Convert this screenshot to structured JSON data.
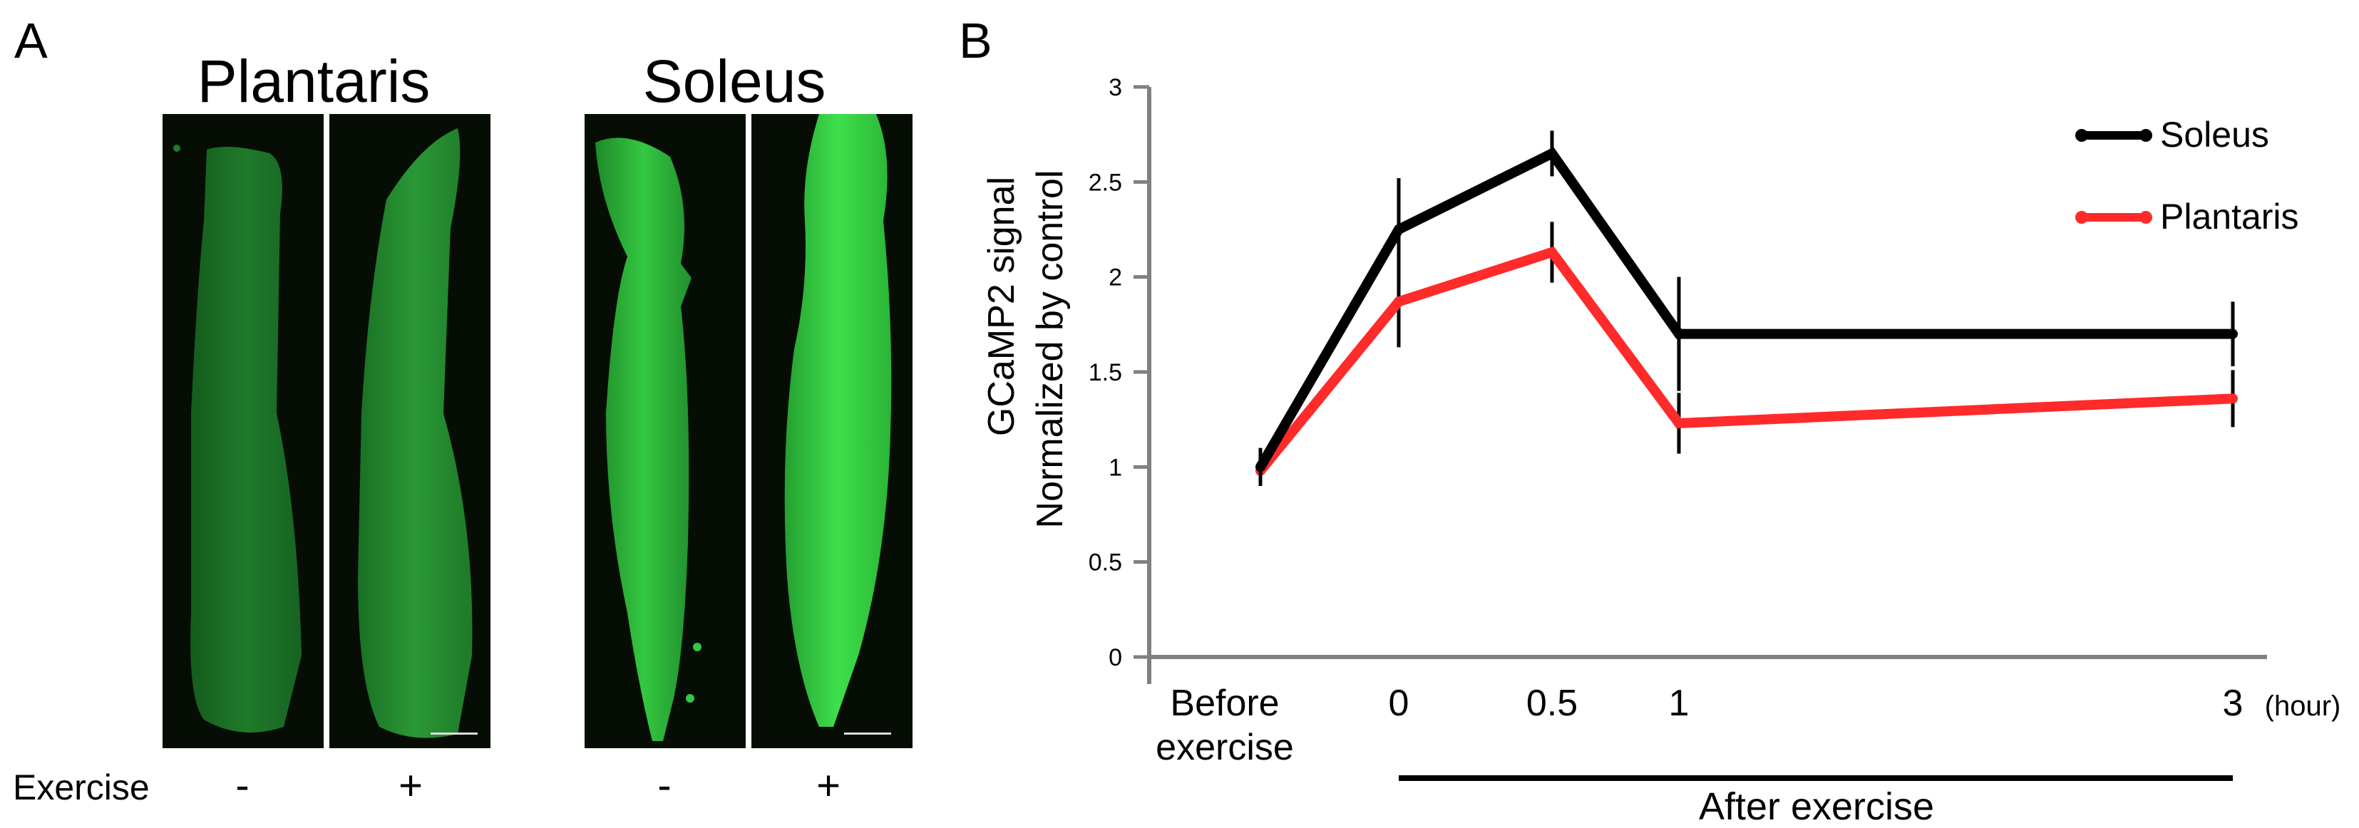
{
  "panel_a": {
    "letter": "A",
    "titles": [
      "Plantaris",
      "Soleus"
    ],
    "exercise_label": "Exercise",
    "signs": [
      "-",
      "+",
      "-",
      "+"
    ]
  },
  "panel_b": {
    "letter": "B",
    "legend": [
      "Soleus",
      "Plantaris"
    ],
    "ylabel_line1": "GCaMP2 signal",
    "ylabel_line2": "Normalized by control",
    "before_line1": "Before",
    "before_line2": "exercise",
    "hour_unit": "(hour)",
    "after_label": "After exercise"
  },
  "colors": {
    "soleus": "#000000",
    "plantaris": "#ff2a2a",
    "axis": "#808080",
    "fluorescence_dim": "#1f7a2a",
    "fluorescence_bright": "#2fd63c"
  },
  "chart_data": {
    "type": "line",
    "title": "",
    "xlabel": "After exercise",
    "ylabel": "GCaMP2 signal Normalized by control",
    "x_ticks": [
      "0",
      "0.5",
      "1",
      "3"
    ],
    "x_positions": [
      0,
      1,
      2,
      3,
      4
    ],
    "ylim": [
      0,
      3
    ],
    "yticks": [
      "0",
      "0.5",
      "1",
      "1.5",
      "2",
      "2.5",
      "3"
    ],
    "ytick_values": [
      0,
      0.5,
      1,
      1.5,
      2,
      2.5,
      3
    ],
    "series": [
      {
        "name": "Soleus",
        "color": "#000000",
        "values": [
          1.0,
          2.25,
          2.65,
          1.7,
          1.7
        ],
        "errors": [
          0.1,
          0.27,
          0.12,
          0.3,
          0.17
        ]
      },
      {
        "name": "Plantaris",
        "color": "#ff2a2a",
        "values": [
          0.98,
          1.87,
          2.13,
          1.23,
          1.36
        ],
        "errors": [
          0.06,
          0.24,
          0.16,
          0.16,
          0.15
        ]
      }
    ],
    "legend_position": "top-right"
  }
}
